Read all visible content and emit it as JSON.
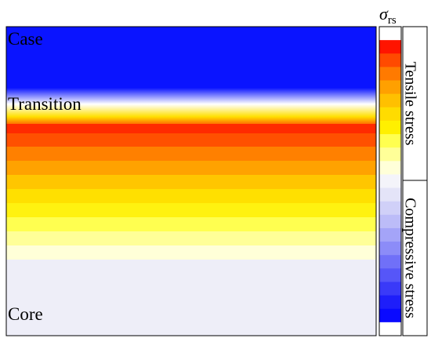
{
  "figure": {
    "regions": {
      "top": "Case",
      "middle": "Transition",
      "bottom": "Core"
    },
    "colorbar": {
      "symbol": "σ",
      "subscript": "rs",
      "upper_label": "Tensile stress",
      "lower_label": "Compressive stress"
    }
  }
}
